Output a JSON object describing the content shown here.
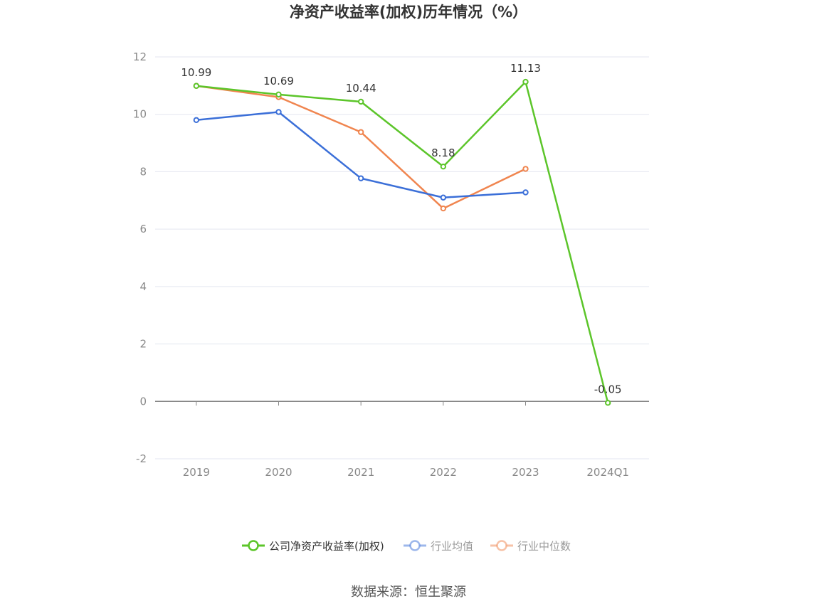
{
  "chart_data": {
    "type": "line",
    "title": "净资产收益率(加权)历年情况（%）",
    "categories": [
      "2019",
      "2020",
      "2021",
      "2022",
      "2023",
      "2024Q1"
    ],
    "ylim": [
      -2,
      12
    ],
    "yticks": [
      -2,
      0,
      2,
      4,
      6,
      8,
      10,
      12
    ],
    "grid": true,
    "legend_position": "bottom",
    "series": [
      {
        "name": "公司净资产收益率(加权)",
        "color": "#5cc52a",
        "values": [
          10.99,
          10.69,
          10.44,
          8.18,
          11.13,
          -0.05
        ],
        "labels": [
          "10.99",
          "10.69",
          "10.44",
          "8.18",
          "11.13",
          "-0.05"
        ]
      },
      {
        "name": "行业均值",
        "color": "#3b6fd8",
        "values": [
          9.8,
          10.08,
          7.77,
          7.1,
          7.28,
          null
        ]
      },
      {
        "name": "行业中位数",
        "color": "#f0854f",
        "values": [
          10.99,
          10.6,
          9.38,
          6.72,
          8.1,
          null
        ]
      }
    ],
    "source": "数据来源：恒生聚源"
  }
}
